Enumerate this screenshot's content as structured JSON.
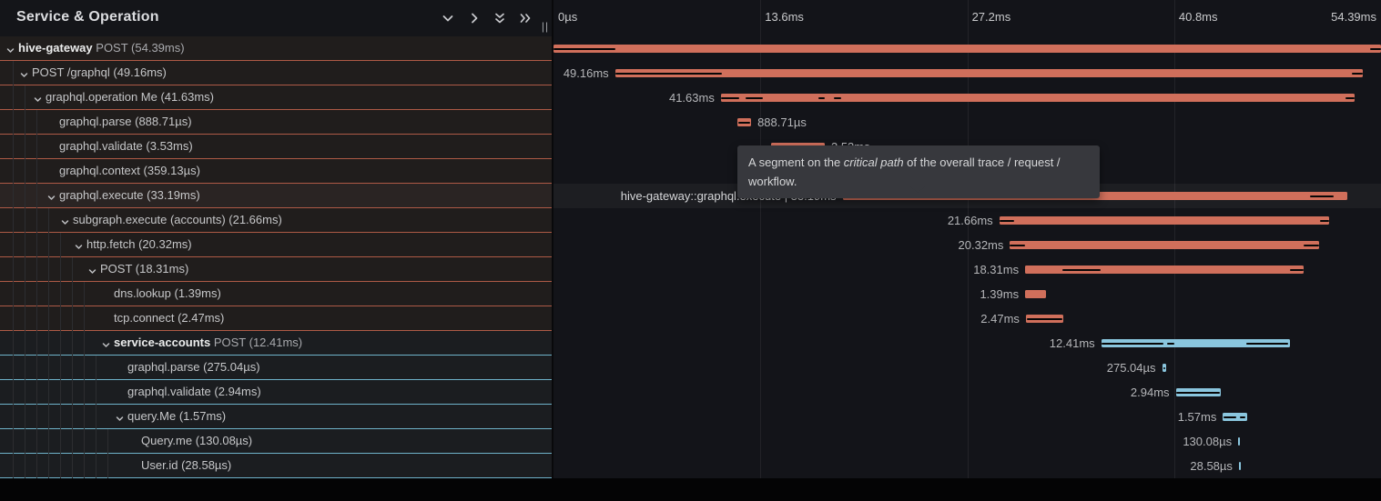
{
  "left_panel": {
    "title": "Service & Operation",
    "toolbar_icons": [
      "chevron-down",
      "chevron-right",
      "double-chevron-down",
      "double-chevron-right"
    ],
    "resize_handle": "||"
  },
  "axis": {
    "total_ms": 54.39,
    "ticks": [
      {
        "label": "0µs",
        "ms": 0,
        "align": "left"
      },
      {
        "label": "13.6ms",
        "ms": 13.6,
        "align": "left"
      },
      {
        "label": "27.2ms",
        "ms": 27.2,
        "align": "left"
      },
      {
        "label": "40.8ms",
        "ms": 40.8,
        "align": "left"
      },
      {
        "label": "54.39ms",
        "ms": 54.39,
        "align": "right"
      }
    ]
  },
  "colors": {
    "salmon": "#d06f5b",
    "salmon_border": "#ae5a46",
    "blue": "#8ac6de",
    "blue_border": "#6fb3ca",
    "critical_path": "#070707"
  },
  "tooltip": {
    "text_before": "A segment on the ",
    "text_italic": "critical path",
    "text_after": " of the overall trace / request / workflow."
  },
  "rows": [
    {
      "service": "hive-gateway",
      "op": "POST (54.39ms)",
      "level": 0,
      "chevron": true,
      "color": "salmon",
      "start_ms": 0,
      "dur_ms": 54.39,
      "bar_label": "",
      "label_side": "left",
      "highlight": false,
      "crit": [
        [
          0,
          4.05
        ],
        [
          53.7,
          0.69
        ]
      ]
    },
    {
      "service": null,
      "op": "POST /graphql (49.16ms)",
      "level": 1,
      "chevron": true,
      "color": "salmon",
      "start_ms": 4.05,
      "dur_ms": 49.16,
      "bar_label": "49.16ms",
      "label_side": "left",
      "highlight": false,
      "crit": [
        [
          0,
          7.0
        ],
        [
          48.45,
          0.71
        ]
      ]
    },
    {
      "service": null,
      "op": "graphql.operation Me (41.63ms)",
      "level": 2,
      "chevron": true,
      "color": "salmon",
      "start_ms": 11.0,
      "dur_ms": 41.63,
      "bar_label": "41.63ms",
      "label_side": "left",
      "highlight": false,
      "crit": [
        [
          0,
          1.2
        ],
        [
          1.65,
          1.1
        ],
        [
          6.4,
          0.45
        ],
        [
          7.4,
          0.5
        ],
        [
          41.05,
          0.58
        ]
      ]
    },
    {
      "service": null,
      "op": "graphql.parse (888.71µs)",
      "level": 3,
      "chevron": false,
      "color": "salmon",
      "start_ms": 12.1,
      "dur_ms": 0.88871,
      "bar_label": "888.71µs",
      "label_side": "right",
      "highlight": false,
      "crit": [
        [
          0.06,
          0.77
        ]
      ]
    },
    {
      "service": null,
      "op": "graphql.validate (3.53ms)",
      "level": 3,
      "chevron": false,
      "color": "salmon",
      "start_ms": 14.3,
      "dur_ms": 3.53,
      "bar_label": "3.53ms",
      "label_side": "right",
      "highlight": false,
      "crit": [
        [
          0.06,
          3.41
        ]
      ]
    },
    {
      "service": null,
      "op": "graphql.context (359.13µs)",
      "level": 3,
      "chevron": false,
      "color": "salmon",
      "start_ms": 18.2,
      "dur_ms": 0.35913,
      "bar_label": "359.13µs",
      "label_side": "right",
      "highlight": false,
      "crit": []
    },
    {
      "service": null,
      "op": "graphql.execute (33.19ms)",
      "level": 3,
      "chevron": true,
      "color": "salmon",
      "start_ms": 19.0,
      "dur_ms": 33.19,
      "bar_label": "hive-gateway::graphql.execute | 33.19ms",
      "label_side": "left",
      "highlight": true,
      "crit": [
        [
          0,
          10.05
        ],
        [
          30.75,
          1.55
        ]
      ]
    },
    {
      "service": null,
      "op": "subgraph.execute (accounts) (21.66ms)",
      "level": 4,
      "chevron": true,
      "color": "salmon",
      "start_ms": 29.3,
      "dur_ms": 21.66,
      "bar_label": "21.66ms",
      "label_side": "left",
      "highlight": false,
      "crit": [
        [
          0,
          1.0
        ],
        [
          21.1,
          0.56
        ]
      ]
    },
    {
      "service": null,
      "op": "http.fetch (20.32ms)",
      "level": 5,
      "chevron": true,
      "color": "salmon",
      "start_ms": 30.0,
      "dur_ms": 20.32,
      "bar_label": "20.32ms",
      "label_side": "left",
      "highlight": false,
      "crit": [
        [
          0,
          1.0
        ],
        [
          19.3,
          1.02
        ]
      ]
    },
    {
      "service": null,
      "op": "POST (18.31ms)",
      "level": 6,
      "chevron": true,
      "color": "salmon",
      "start_ms": 31.0,
      "dur_ms": 18.31,
      "bar_label": "18.31ms",
      "label_side": "left",
      "highlight": false,
      "crit": [
        [
          2.45,
          2.5
        ],
        [
          17.4,
          0.91
        ]
      ]
    },
    {
      "service": null,
      "op": "dns.lookup (1.39ms)",
      "level": 7,
      "chevron": false,
      "color": "salmon",
      "start_ms": 31.0,
      "dur_ms": 1.39,
      "bar_label": "1.39ms",
      "label_side": "left",
      "highlight": false,
      "crit": []
    },
    {
      "service": null,
      "op": "tcp.connect (2.47ms)",
      "level": 7,
      "chevron": false,
      "color": "salmon",
      "start_ms": 31.05,
      "dur_ms": 2.47,
      "bar_label": "2.47ms",
      "label_side": "left",
      "highlight": false,
      "crit": [
        [
          0.06,
          2.35
        ]
      ]
    },
    {
      "service": "service-accounts",
      "op": "POST (12.41ms)",
      "level": 7,
      "chevron": true,
      "color": "blue",
      "start_ms": 36.0,
      "dur_ms": 12.41,
      "bar_label": "12.41ms",
      "label_side": "left",
      "highlight": false,
      "crit": [
        [
          0,
          4.1
        ],
        [
          4.35,
          0.45
        ],
        [
          9.55,
          2.73
        ]
      ]
    },
    {
      "service": null,
      "op": "graphql.parse (275.04µs)",
      "level": 8,
      "chevron": false,
      "color": "blue",
      "start_ms": 40.0,
      "dur_ms": 0.27504,
      "bar_label": "275.04µs",
      "label_side": "left",
      "highlight": false,
      "crit": [
        [
          0.07,
          0.13
        ]
      ]
    },
    {
      "service": null,
      "op": "graphql.validate (2.94ms)",
      "level": 8,
      "chevron": false,
      "color": "blue",
      "start_ms": 40.9,
      "dur_ms": 2.94,
      "bar_label": "2.94ms",
      "label_side": "left",
      "highlight": false,
      "crit": [
        [
          0.05,
          2.84
        ]
      ]
    },
    {
      "service": null,
      "op": "query.Me (1.57ms)",
      "level": 8,
      "chevron": true,
      "color": "blue",
      "start_ms": 44.0,
      "dur_ms": 1.57,
      "bar_label": "1.57ms",
      "label_side": "left",
      "highlight": false,
      "crit": [
        [
          0.05,
          0.85
        ],
        [
          1.12,
          0.38
        ]
      ]
    },
    {
      "service": null,
      "op": "Query.me (130.08µs)",
      "level": 9,
      "chevron": false,
      "color": "blue",
      "start_ms": 45.0,
      "dur_ms": 0.13008,
      "bar_label": "130.08µs",
      "label_side": "left",
      "highlight": false,
      "crit": []
    },
    {
      "service": null,
      "op": "User.id (28.58µs)",
      "level": 9,
      "chevron": false,
      "color": "blue",
      "start_ms": 45.05,
      "dur_ms": 0.02858,
      "bar_label": "28.58µs",
      "label_side": "left",
      "highlight": false,
      "crit": []
    }
  ]
}
